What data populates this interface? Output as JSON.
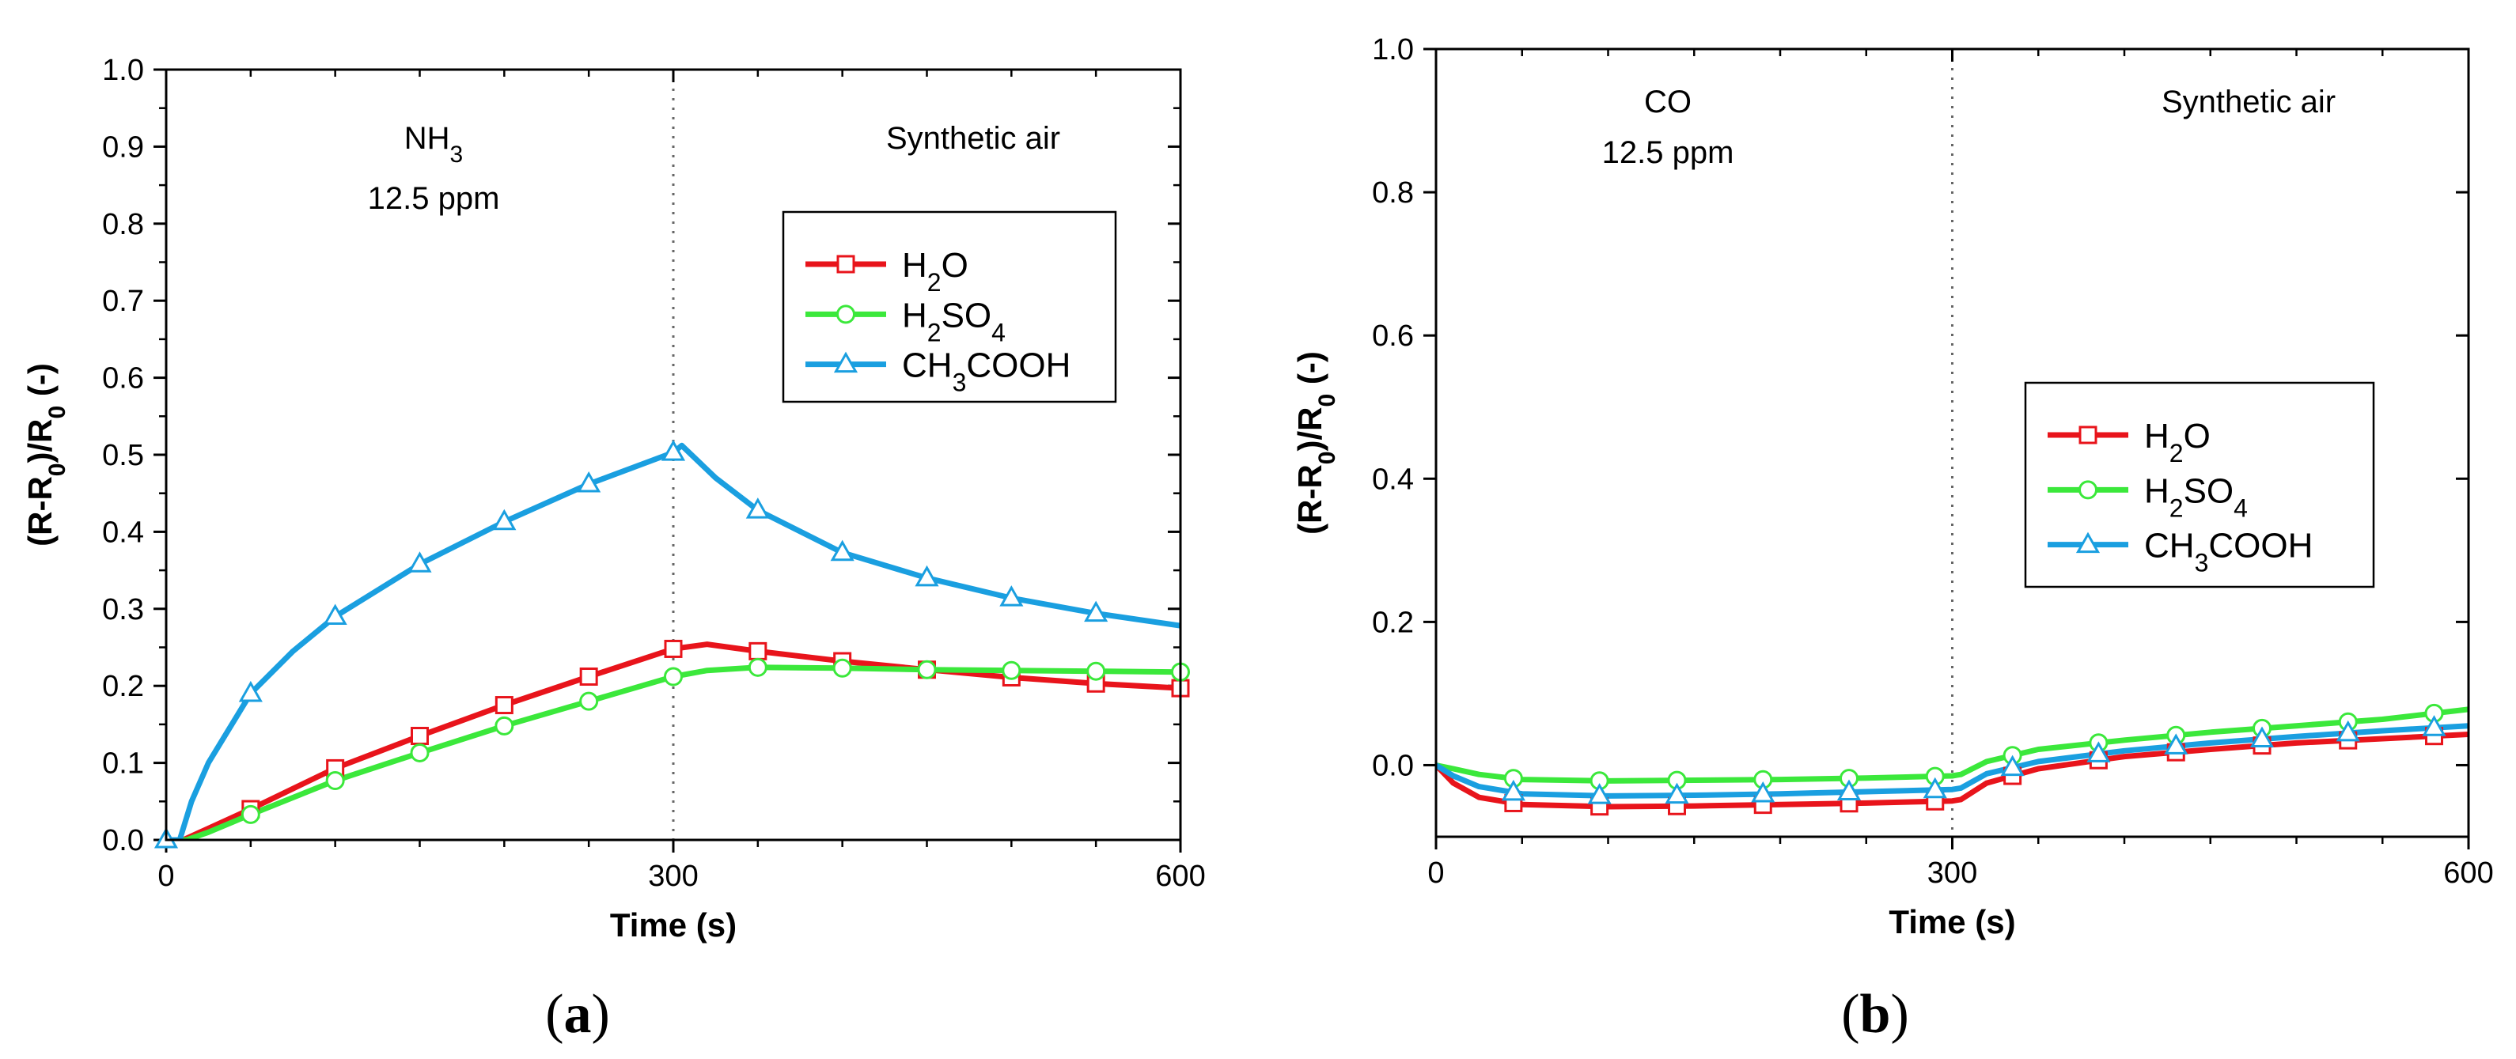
{
  "chart_data": [
    {
      "id": "a",
      "type": "line",
      "panel_label": "a",
      "xlabel": "Time (s)",
      "ylabel": "(R-R0)/R0 (-)",
      "xlim": [
        0,
        600
      ],
      "ylim": [
        0,
        1.0
      ],
      "xticks": [
        0,
        300,
        600
      ],
      "yticks": [
        0.0,
        0.1,
        0.2,
        0.3,
        0.4,
        0.5,
        0.6,
        0.7,
        0.8,
        0.9,
        1.0
      ],
      "ytick_labels": [
        "0.0",
        "0.1",
        "0.2",
        "0.3",
        "0.4",
        "0.5",
        "0.6",
        "0.7",
        "0.8",
        "0.9",
        "1.0"
      ],
      "divider_x": 300,
      "annotations": {
        "left_gas": "NH",
        "left_gas_sub": "3",
        "left_conc": "12.5 ppm",
        "right": "Synthetic air"
      },
      "legend_position": "top-right",
      "series": [
        {
          "name": "H2O",
          "label_main": "H",
          "label_sub": "2",
          "label_tail": "O",
          "color": "#e8141b",
          "marker": "square",
          "x": [
            0,
            10,
            25,
            50,
            100,
            150,
            200,
            250,
            300,
            320,
            350,
            400,
            450,
            500,
            550,
            600
          ],
          "y": [
            0.0,
            0.0,
            0.015,
            0.04,
            0.093,
            0.135,
            0.175,
            0.212,
            0.248,
            0.254,
            0.245,
            0.232,
            0.221,
            0.211,
            0.203,
            0.197
          ],
          "marker_x": [
            50,
            100,
            150,
            200,
            250,
            300,
            350,
            400,
            450,
            500,
            550,
            600
          ]
        },
        {
          "name": "H2SO4",
          "label_main": "H",
          "label_sub": "2",
          "label_tail": "SO",
          "label_sub2": "4",
          "color": "#3be83b",
          "marker": "circle",
          "x": [
            0,
            12,
            25,
            50,
            100,
            150,
            200,
            250,
            300,
            320,
            350,
            400,
            450,
            500,
            550,
            600
          ],
          "y": [
            0.0,
            0.0,
            0.01,
            0.033,
            0.077,
            0.113,
            0.148,
            0.18,
            0.212,
            0.22,
            0.224,
            0.223,
            0.221,
            0.22,
            0.219,
            0.218
          ],
          "marker_x": [
            50,
            100,
            150,
            200,
            250,
            300,
            350,
            400,
            450,
            500,
            550,
            600
          ]
        },
        {
          "name": "CH3COOH",
          "label_main": "CH",
          "label_sub": "3",
          "label_tail": "COOH",
          "color": "#1a9fe0",
          "marker": "triangle",
          "x": [
            0,
            8,
            15,
            25,
            50,
            75,
            100,
            150,
            200,
            250,
            300,
            305,
            325,
            350,
            400,
            450,
            500,
            550,
            600
          ],
          "y": [
            0.0,
            0.0,
            0.05,
            0.1,
            0.19,
            0.245,
            0.29,
            0.358,
            0.413,
            0.462,
            0.503,
            0.512,
            0.47,
            0.428,
            0.373,
            0.34,
            0.314,
            0.294,
            0.278
          ],
          "marker_x": [
            0,
            50,
            100,
            150,
            200,
            250,
            300,
            350,
            400,
            450,
            500,
            550
          ]
        }
      ]
    },
    {
      "id": "b",
      "type": "line",
      "panel_label": "b",
      "xlabel": "Time (s)",
      "ylabel": "(R-R0)/R0 (-)",
      "xlim": [
        0,
        600
      ],
      "ylim": [
        -0.1,
        1.0
      ],
      "xticks": [
        0,
        300,
        600
      ],
      "yticks": [
        0.0,
        0.2,
        0.4,
        0.6,
        0.8,
        1.0
      ],
      "ytick_labels": [
        "0.0",
        "0.2",
        "0.4",
        "0.6",
        "0.8",
        "1.0"
      ],
      "divider_x": 300,
      "annotations": {
        "left_gas": "CO",
        "left_gas_sub": "",
        "left_conc": "12.5 ppm",
        "right": "Synthetic air"
      },
      "legend_position": "middle-right",
      "series": [
        {
          "name": "H2O",
          "label_main": "H",
          "label_sub": "2",
          "label_tail": "O",
          "color": "#e8141b",
          "marker": "square",
          "x": [
            0,
            10,
            25,
            50,
            100,
            150,
            200,
            250,
            300,
            305,
            320,
            350,
            400,
            450,
            500,
            550,
            600
          ],
          "y": [
            0.0,
            -0.025,
            -0.045,
            -0.055,
            -0.058,
            -0.057,
            -0.055,
            -0.053,
            -0.05,
            -0.048,
            -0.025,
            -0.005,
            0.012,
            0.022,
            0.031,
            0.037,
            0.043
          ],
          "marker_x": [
            45,
            95,
            140,
            190,
            240,
            290,
            335,
            385,
            430,
            480,
            530,
            580
          ]
        },
        {
          "name": "H2SO4",
          "label_main": "H",
          "label_sub": "2",
          "label_tail": "SO",
          "label_sub2": "4",
          "color": "#3be83b",
          "marker": "circle",
          "x": [
            0,
            10,
            25,
            50,
            100,
            150,
            200,
            250,
            300,
            305,
            320,
            350,
            400,
            450,
            500,
            550,
            600
          ],
          "y": [
            0.0,
            -0.005,
            -0.013,
            -0.02,
            -0.022,
            -0.021,
            -0.02,
            -0.018,
            -0.015,
            -0.013,
            0.005,
            0.022,
            0.035,
            0.046,
            0.055,
            0.064,
            0.078
          ],
          "marker_x": [
            45,
            95,
            140,
            190,
            240,
            290,
            335,
            385,
            430,
            480,
            530,
            580
          ]
        },
        {
          "name": "CH3COOH",
          "label_main": "CH",
          "label_sub": "3",
          "label_tail": "COOH",
          "color": "#1a9fe0",
          "marker": "triangle",
          "x": [
            0,
            10,
            25,
            50,
            100,
            150,
            200,
            250,
            300,
            305,
            320,
            350,
            400,
            450,
            500,
            550,
            600
          ],
          "y": [
            0.0,
            -0.015,
            -0.03,
            -0.04,
            -0.043,
            -0.042,
            -0.04,
            -0.037,
            -0.034,
            -0.032,
            -0.012,
            0.005,
            0.02,
            0.031,
            0.04,
            0.048,
            0.055
          ],
          "marker_x": [
            45,
            95,
            140,
            190,
            240,
            290,
            335,
            385,
            430,
            480,
            530,
            580
          ]
        }
      ]
    }
  ]
}
